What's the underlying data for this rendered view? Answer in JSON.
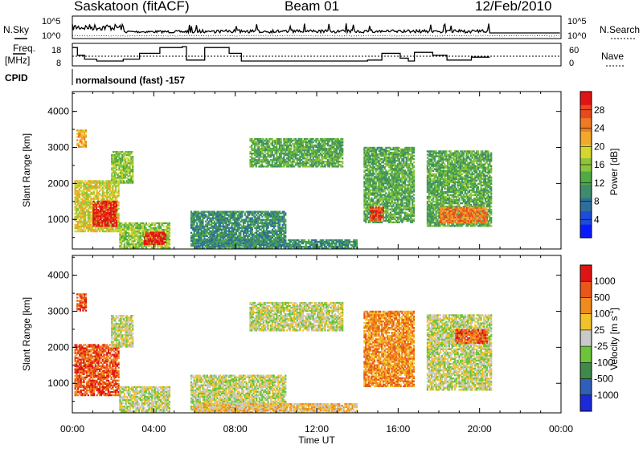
{
  "header": {
    "station": "Saskatoon (fitACF)",
    "beam": "Beam 01",
    "date": "12/Feb/2010"
  },
  "top_panel": {
    "left_label": "N.Sky",
    "right_label": "N.Search",
    "left_ticks": [
      "10^5",
      "10^0"
    ],
    "right_ticks": [
      "10^5",
      "10^0"
    ]
  },
  "freq_panel": {
    "left_label_line1": "Freq.",
    "left_label_line2": "[MHz]",
    "right_label": "Nave",
    "left_ticks": [
      "18",
      "8"
    ],
    "right_ticks": [
      "60",
      "0"
    ],
    "freq_steps": [
      {
        "t0": 0.0,
        "t1": 0.25,
        "mhz": 17.5
      },
      {
        "t0": 0.25,
        "t1": 0.6,
        "mhz": 13.5
      },
      {
        "t0": 0.6,
        "t1": 1.2,
        "mhz": 11.5
      },
      {
        "t0": 1.2,
        "t1": 2.5,
        "mhz": 10.5
      },
      {
        "t0": 2.5,
        "t1": 3.3,
        "mhz": 11.5
      },
      {
        "t0": 3.3,
        "t1": 4.3,
        "mhz": 14.5
      },
      {
        "t0": 4.3,
        "t1": 5.4,
        "mhz": 17.5
      },
      {
        "t0": 5.4,
        "t1": 5.6,
        "mhz": 18.0
      },
      {
        "t0": 5.6,
        "t1": 6.5,
        "mhz": 11.0
      },
      {
        "t0": 6.5,
        "t1": 7.7,
        "mhz": 17.5
      },
      {
        "t0": 7.7,
        "t1": 8.3,
        "mhz": 14.5
      },
      {
        "t0": 8.3,
        "t1": 11.6,
        "mhz": 10.5
      },
      {
        "t0": 11.6,
        "t1": 14.5,
        "mhz": 10.5
      },
      {
        "t0": 14.5,
        "t1": 15.2,
        "mhz": 11.0
      },
      {
        "t0": 15.2,
        "t1": 16.1,
        "mhz": 14.5
      },
      {
        "t0": 16.1,
        "t1": 16.5,
        "mhz": 12.0
      },
      {
        "t0": 16.5,
        "t1": 16.8,
        "mhz": 10.5
      },
      {
        "t0": 16.8,
        "t1": 17.7,
        "mhz": 15.0
      },
      {
        "t0": 17.7,
        "t1": 18.4,
        "mhz": 13.5
      },
      {
        "t0": 18.4,
        "t1": 19.6,
        "mhz": 11.0
      },
      {
        "t0": 19.6,
        "t1": 20.5,
        "mhz": 12.5
      }
    ]
  },
  "cpid": {
    "label": "CPID",
    "value": "normalsound (fast) -157"
  },
  "chart_data": [
    {
      "type": "heatmap",
      "quantity": "Power",
      "ylabel": "Slant Range [km]",
      "xlabel": "Time UT",
      "xlim": [
        0,
        24
      ],
      "ylim": [
        180,
        4550
      ],
      "yticks": [
        "1000",
        "2000",
        "3000",
        "4000"
      ],
      "xticks": [
        "00:00",
        "04:00",
        "08:00",
        "12:00",
        "16:00",
        "20:00",
        "00:00"
      ],
      "colorbar": {
        "label": "Power [dB]",
        "ticks": [
          "4",
          "8",
          "12",
          "16",
          "20",
          "24",
          "28"
        ],
        "colors": [
          "#0a1aff",
          "#1c4cd8",
          "#2e6e9a",
          "#3e8c6a",
          "#4faa44",
          "#8cc53a",
          "#d6d631",
          "#f2a82a",
          "#f07a23",
          "#e84a1d",
          "#e01414"
        ]
      },
      "regions": [
        {
          "t0": 0.1,
          "t1": 2.3,
          "r0": 650,
          "r1": 2100,
          "level": 6
        },
        {
          "t0": 1.0,
          "t1": 2.2,
          "r0": 800,
          "r1": 1500,
          "level": 10
        },
        {
          "t0": 0.2,
          "t1": 0.7,
          "r0": 3000,
          "r1": 3500,
          "level": 7
        },
        {
          "t0": 1.9,
          "t1": 3.0,
          "r0": 2000,
          "r1": 2900,
          "level": 5
        },
        {
          "t0": 2.3,
          "t1": 4.8,
          "r0": 200,
          "r1": 900,
          "level": 5
        },
        {
          "t0": 3.5,
          "t1": 4.6,
          "r0": 300,
          "r1": 650,
          "level": 10
        },
        {
          "t0": 5.8,
          "t1": 10.5,
          "r0": 250,
          "r1": 1250,
          "level": 3
        },
        {
          "t0": 8.7,
          "t1": 13.3,
          "r0": 2450,
          "r1": 3250,
          "level": 4
        },
        {
          "t0": 14.3,
          "t1": 16.8,
          "r0": 900,
          "r1": 3000,
          "level": 4
        },
        {
          "t0": 14.6,
          "t1": 15.3,
          "r0": 950,
          "r1": 1350,
          "level": 9
        },
        {
          "t0": 17.4,
          "t1": 20.6,
          "r0": 800,
          "r1": 2900,
          "level": 4
        },
        {
          "t0": 18.0,
          "t1": 20.4,
          "r0": 900,
          "r1": 1350,
          "level": 8
        },
        {
          "t0": 6.0,
          "t1": 14.0,
          "r0": 180,
          "r1": 450,
          "level": 3
        }
      ]
    },
    {
      "type": "heatmap",
      "quantity": "Velocity",
      "ylabel": "Slant Range [km]",
      "xlabel": "Time UT",
      "xlim": [
        0,
        24
      ],
      "ylim": [
        180,
        4550
      ],
      "yticks": [
        "1000",
        "2000",
        "3000",
        "4000"
      ],
      "xticks": [
        "00:00",
        "04:00",
        "08:00",
        "12:00",
        "16:00",
        "20:00",
        "00:00"
      ],
      "colorbar": {
        "label": "Velocity [m s",
        "label_sup": "-1",
        "label_end": "]",
        "ticks": [
          "1000",
          "500",
          "100",
          "25",
          "-25",
          "-100",
          "-500",
          "-1000"
        ],
        "colors": [
          "#1a2ad8",
          "#2f5fb8",
          "#3f8a4a",
          "#6cc43c",
          "#c9c9c9",
          "#f2c22a",
          "#f08a1f",
          "#e8561a",
          "#e01414"
        ]
      },
      "regions": [
        {
          "t0": 0.1,
          "t1": 2.3,
          "r0": 650,
          "r1": 2100,
          "level": 7
        },
        {
          "t0": 0.2,
          "t1": 0.7,
          "r0": 3000,
          "r1": 3500,
          "level": 7
        },
        {
          "t0": 1.9,
          "t1": 3.0,
          "r0": 2000,
          "r1": 2900,
          "level": 4
        },
        {
          "t0": 2.3,
          "t1": 4.8,
          "r0": 200,
          "r1": 900,
          "level": 4
        },
        {
          "t0": 5.8,
          "t1": 10.5,
          "r0": 250,
          "r1": 1250,
          "level": 4
        },
        {
          "t0": 8.7,
          "t1": 13.3,
          "r0": 2450,
          "r1": 3250,
          "level": 4
        },
        {
          "t0": 14.3,
          "t1": 16.8,
          "r0": 900,
          "r1": 3000,
          "level": 6
        },
        {
          "t0": 17.4,
          "t1": 20.6,
          "r0": 800,
          "r1": 2900,
          "level": 4
        },
        {
          "t0": 18.8,
          "t1": 20.4,
          "r0": 2100,
          "r1": 2500,
          "level": 7
        },
        {
          "t0": 6.0,
          "t1": 14.0,
          "r0": 180,
          "r1": 450,
          "level": 5
        }
      ]
    }
  ]
}
